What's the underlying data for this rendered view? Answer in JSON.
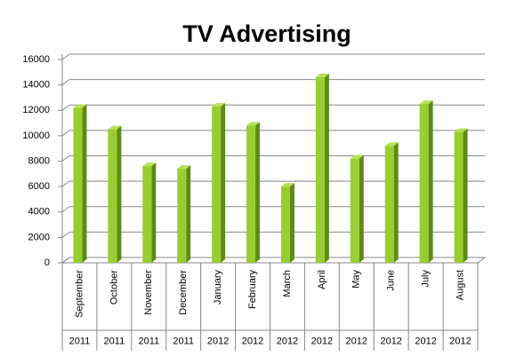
{
  "chart_data": {
    "type": "bar3d",
    "title": "TV Advertising",
    "categories": [
      "September",
      "October",
      "November",
      "December",
      "January",
      "February",
      "March",
      "April",
      "May",
      "June",
      "July",
      "August"
    ],
    "years": [
      "2011",
      "2011",
      "2011",
      "2011",
      "2012",
      "2012",
      "2012",
      "2012",
      "2012",
      "2012",
      "2012",
      "2012"
    ],
    "values": [
      12200,
      10500,
      7600,
      7400,
      12300,
      10800,
      6000,
      14600,
      8200,
      9200,
      12500,
      10300
    ],
    "color": "#9acd32",
    "ylim": [
      0,
      16000
    ],
    "yticks": [
      0,
      2000,
      4000,
      6000,
      8000,
      10000,
      12000,
      14000,
      16000
    ],
    "grid": true
  }
}
